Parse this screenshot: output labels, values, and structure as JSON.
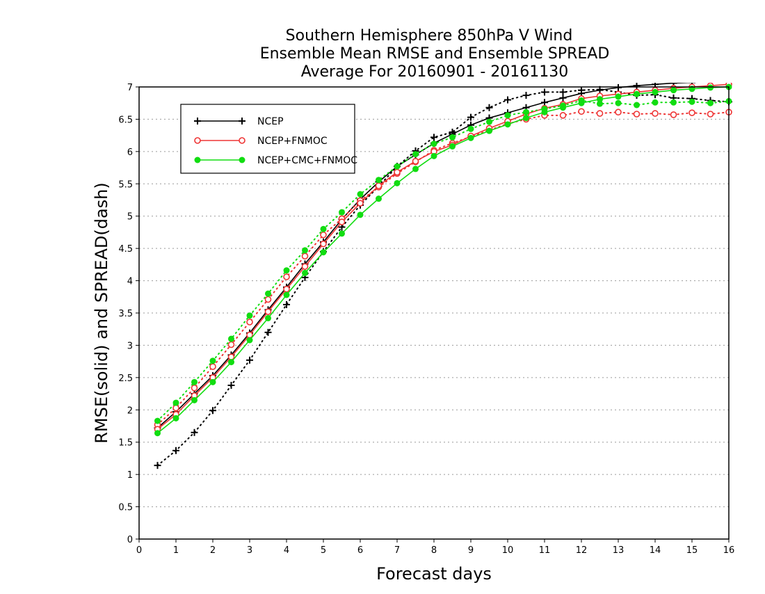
{
  "chart_data": {
    "type": "line",
    "title_lines": [
      "Southern Hemisphere 850hPa V Wind",
      "Ensemble Mean RMSE and Ensemble SPREAD",
      "Average For 20160901 - 20161130"
    ],
    "xlabel": "Forecast days",
    "ylabel": "RMSE(solid) and SPREAD(dash)",
    "xlim": [
      0,
      16
    ],
    "ylim": [
      0,
      7
    ],
    "x_ticks": [
      "0",
      "1",
      "2",
      "3",
      "4",
      "5",
      "6",
      "7",
      "8",
      "9",
      "10",
      "11",
      "12",
      "13",
      "14",
      "15",
      "16"
    ],
    "y_ticks": [
      "0",
      "0.5",
      "1",
      "1.5",
      "2",
      "2.5",
      "3",
      "3.5",
      "4",
      "4.5",
      "5",
      "5.5",
      "6",
      "6.5",
      "7"
    ],
    "grid": "horizontal dotted",
    "legend_position": "upper-left",
    "x": [
      0.5,
      1,
      1.5,
      2,
      2.5,
      3,
      3.5,
      4,
      4.5,
      5,
      5.5,
      6,
      6.5,
      7,
      7.5,
      8,
      8.5,
      9,
      9.5,
      10,
      10.5,
      11,
      11.5,
      12,
      12.5,
      13,
      13.5,
      14,
      14.5,
      15,
      15.5,
      16
    ],
    "series": [
      {
        "name": "NCEP",
        "color": "#000000",
        "marker": "plus",
        "rmse": [
          1.72,
          1.97,
          2.25,
          2.53,
          2.85,
          3.19,
          3.55,
          3.9,
          4.26,
          4.6,
          4.95,
          5.26,
          5.53,
          5.77,
          5.95,
          6.13,
          6.27,
          6.41,
          6.52,
          6.6,
          6.68,
          6.76,
          6.83,
          6.9,
          6.95,
          6.99,
          7.02,
          7.04,
          7.06,
          7.07,
          7.08,
          7.09
        ],
        "spread": [
          1.14,
          1.37,
          1.65,
          1.99,
          2.38,
          2.77,
          3.2,
          3.63,
          4.05,
          4.45,
          4.83,
          5.17,
          5.46,
          5.77,
          6.01,
          6.22,
          6.3,
          6.53,
          6.68,
          6.8,
          6.87,
          6.92,
          6.92,
          6.95,
          6.96,
          6.92,
          6.87,
          6.88,
          6.83,
          6.82,
          6.79,
          6.77
        ]
      },
      {
        "name": "NCEP+FNMOC",
        "color": "#ee3333",
        "marker": "open-circle",
        "rmse": [
          1.7,
          1.93,
          2.22,
          2.5,
          2.82,
          3.16,
          3.52,
          3.87,
          4.22,
          4.57,
          4.91,
          5.2,
          5.47,
          5.68,
          5.85,
          6.0,
          6.1,
          6.24,
          6.36,
          6.47,
          6.58,
          6.67,
          6.73,
          6.82,
          6.86,
          6.89,
          6.92,
          6.95,
          6.98,
          7.0,
          7.02,
          7.04
        ],
        "spread": [
          1.77,
          2.03,
          2.34,
          2.67,
          3.01,
          3.36,
          3.71,
          4.06,
          4.38,
          4.71,
          4.96,
          5.24,
          5.45,
          5.66,
          5.84,
          6.02,
          6.13,
          6.23,
          6.33,
          6.43,
          6.5,
          6.56,
          6.56,
          6.62,
          6.59,
          6.61,
          6.58,
          6.59,
          6.57,
          6.6,
          6.58,
          6.61
        ]
      },
      {
        "name": "NCEP+CMC+FNMOC",
        "color": "#11dd11",
        "marker": "filled-circle",
        "rmse": [
          1.64,
          1.87,
          2.15,
          2.43,
          2.74,
          3.08,
          3.42,
          3.78,
          4.12,
          4.44,
          4.73,
          5.02,
          5.27,
          5.51,
          5.73,
          5.93,
          6.08,
          6.21,
          6.32,
          6.42,
          6.52,
          6.61,
          6.68,
          6.75,
          6.81,
          6.85,
          6.89,
          6.92,
          6.95,
          6.97,
          6.99,
          7.0
        ],
        "spread": [
          1.83,
          2.11,
          2.43,
          2.76,
          3.1,
          3.46,
          3.8,
          4.16,
          4.47,
          4.8,
          5.06,
          5.34,
          5.56,
          5.77,
          5.96,
          6.12,
          6.22,
          6.35,
          6.46,
          6.56,
          6.61,
          6.66,
          6.71,
          6.79,
          6.74,
          6.75,
          6.72,
          6.76,
          6.76,
          6.77,
          6.75,
          6.78
        ]
      }
    ]
  }
}
